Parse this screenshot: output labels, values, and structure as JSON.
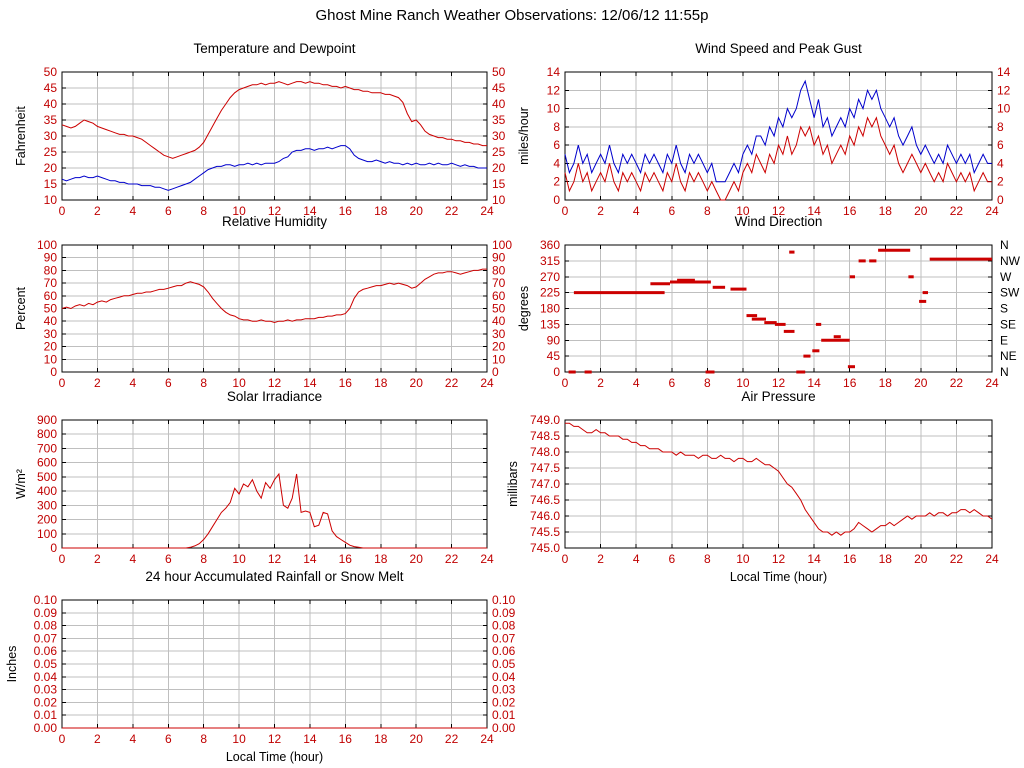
{
  "page_title": "Ghost Mine Ranch Weather Observations: 12/06/12 11:55p",
  "colors": {
    "red": "#cc0000",
    "blue": "#0000cc",
    "grid": "#bfbfbf",
    "tick_text": "#c00000",
    "axis_text": "#000000"
  },
  "chart_data": [
    {
      "id": "temperature",
      "type": "line",
      "title": "Temperature and Dewpoint",
      "ylabel": "Fahrenheit",
      "xlabel": "",
      "xlim": [
        0,
        24
      ],
      "xtick_step": 2,
      "ylim": [
        10,
        50
      ],
      "yticks": [
        10,
        15,
        20,
        25,
        30,
        35,
        40,
        45,
        50
      ],
      "ytick_decimals": 0,
      "mirror_right": true,
      "series": [
        {
          "name": "temperature",
          "color": "#cc0000",
          "x_start": 0,
          "x_step": 0.25,
          "values": [
            33.5,
            33,
            32.5,
            33,
            34,
            35,
            34.5,
            34,
            33,
            32.5,
            32,
            31.5,
            31,
            30.5,
            30.5,
            30,
            30,
            29.5,
            29,
            28,
            27,
            26,
            25,
            24,
            23.5,
            23,
            23.5,
            24,
            24.5,
            25,
            25.5,
            26.5,
            28,
            30.5,
            33,
            35.5,
            38,
            40,
            42,
            43.5,
            44.5,
            45,
            45.5,
            46,
            46,
            46.5,
            46,
            46.5,
            46.5,
            47,
            46.5,
            46,
            46.5,
            47,
            47,
            46.5,
            47,
            46.5,
            46.5,
            46,
            46,
            45.5,
            45.5,
            45,
            45.5,
            45,
            44.5,
            44.5,
            44,
            44,
            43.5,
            43.5,
            43.5,
            43,
            43,
            42.5,
            42,
            40.5,
            37,
            34.5,
            35,
            33.5,
            31.5,
            30.5,
            30,
            29.5,
            29.5,
            29,
            29,
            28.5,
            28.5,
            28,
            28,
            27.5,
            27.5,
            27,
            27
          ]
        },
        {
          "name": "dewpoint",
          "color": "#0000cc",
          "x_start": 0,
          "x_step": 0.25,
          "values": [
            16.5,
            16,
            16.5,
            17,
            17,
            17.5,
            17,
            17,
            17.5,
            17,
            16.5,
            16,
            16,
            15.5,
            15.5,
            15,
            15,
            15,
            14.5,
            14.5,
            14.5,
            14,
            14,
            13.5,
            13,
            13.5,
            14,
            14.5,
            15,
            15.5,
            16.5,
            17.5,
            18.5,
            19.5,
            20,
            20.5,
            20.5,
            21,
            21,
            20.5,
            21,
            21,
            21.5,
            21,
            21.5,
            21,
            21.5,
            21.5,
            21.5,
            22,
            23,
            23.5,
            25,
            25.5,
            25.5,
            26,
            26,
            25.5,
            26,
            26,
            26.5,
            26,
            26.5,
            27,
            27,
            26,
            24,
            23,
            22.5,
            22,
            22,
            22.5,
            22,
            21.5,
            22,
            21.5,
            21.5,
            21,
            21.5,
            21,
            21.5,
            21,
            21,
            21.5,
            21,
            21.5,
            21,
            21,
            21.5,
            21,
            20.5,
            21,
            20.5,
            20.5,
            20,
            20,
            20
          ]
        }
      ]
    },
    {
      "id": "wind_speed",
      "type": "line",
      "title": "Wind Speed and Peak Gust",
      "ylabel": "miles/hour",
      "xlabel": "",
      "xlim": [
        0,
        24
      ],
      "xtick_step": 2,
      "ylim": [
        0,
        14
      ],
      "yticks": [
        0,
        2,
        4,
        6,
        8,
        10,
        12,
        14
      ],
      "ytick_decimals": 0,
      "mirror_right": true,
      "series": [
        {
          "name": "peak-gust",
          "color": "#0000cc",
          "x_start": 0,
          "x_step": 0.25,
          "values": [
            5,
            3,
            4,
            6,
            4,
            5,
            3,
            4,
            5,
            4,
            6,
            4,
            3,
            5,
            4,
            5,
            4,
            3,
            5,
            4,
            5,
            4,
            3,
            5,
            4,
            6,
            4,
            3,
            5,
            4,
            5,
            4,
            3,
            4,
            2,
            2,
            2,
            3,
            4,
            3,
            5,
            6,
            5,
            7,
            7,
            6,
            8,
            7,
            9,
            8,
            10,
            9,
            10,
            12,
            13,
            11,
            9,
            11,
            8,
            9,
            7,
            8,
            9,
            8,
            10,
            9,
            11,
            10,
            12,
            11,
            12,
            10,
            9,
            8,
            9,
            7,
            6,
            7,
            8,
            6,
            5,
            6,
            5,
            4,
            5,
            4,
            6,
            5,
            4,
            5,
            4,
            5,
            3,
            4,
            5,
            4,
            4
          ]
        },
        {
          "name": "wind-speed",
          "color": "#cc0000",
          "x_start": 0,
          "x_step": 0.25,
          "values": [
            3,
            1,
            2,
            4,
            2,
            3,
            1,
            2,
            3,
            2,
            4,
            2,
            1,
            3,
            2,
            3,
            2,
            1,
            3,
            2,
            3,
            2,
            1,
            3,
            2,
            4,
            2,
            1,
            3,
            2,
            3,
            2,
            1,
            2,
            1,
            0,
            0,
            1,
            2,
            1,
            3,
            4,
            3,
            5,
            4,
            3,
            5,
            4,
            6,
            5,
            7,
            5,
            6,
            8,
            7,
            8,
            6,
            7,
            5,
            6,
            4,
            5,
            6,
            5,
            7,
            6,
            8,
            7,
            9,
            8,
            9,
            7,
            6,
            5,
            6,
            4,
            3,
            4,
            5,
            4,
            3,
            4,
            3,
            2,
            3,
            2,
            4,
            3,
            2,
            3,
            2,
            3,
            1,
            2,
            3,
            2,
            2
          ]
        }
      ]
    },
    {
      "id": "humidity",
      "type": "line",
      "title": "Relative Humidity",
      "ylabel": "Percent",
      "xlabel": "",
      "xlim": [
        0,
        24
      ],
      "xtick_step": 2,
      "ylim": [
        0,
        100
      ],
      "yticks": [
        0,
        10,
        20,
        30,
        40,
        50,
        60,
        70,
        80,
        90,
        100
      ],
      "ytick_decimals": 0,
      "mirror_right": true,
      "series": [
        {
          "name": "relative-humidity",
          "color": "#cc0000",
          "x_start": 0,
          "x_step": 0.25,
          "values": [
            50,
            51,
            50,
            52,
            53,
            52,
            54,
            53,
            55,
            56,
            55,
            57,
            58,
            59,
            60,
            60,
            61,
            62,
            62,
            63,
            63,
            64,
            65,
            65,
            66,
            67,
            68,
            68,
            70,
            71,
            70,
            69,
            67,
            63,
            58,
            54,
            50,
            47,
            45,
            44,
            42,
            41,
            41,
            40,
            40,
            41,
            40,
            40,
            39,
            40,
            40,
            41,
            40,
            41,
            41,
            42,
            42,
            42,
            43,
            43,
            44,
            44,
            45,
            45,
            46,
            50,
            58,
            63,
            65,
            66,
            67,
            68,
            68,
            69,
            70,
            69,
            70,
            69,
            68,
            66,
            67,
            70,
            73,
            75,
            77,
            78,
            78,
            79,
            79,
            78,
            77,
            78,
            79,
            80,
            80,
            81,
            81
          ]
        }
      ]
    },
    {
      "id": "wind_direction",
      "type": "segments",
      "title": "Wind Direction",
      "ylabel": "degrees",
      "xlabel": "",
      "xlim": [
        0,
        24
      ],
      "xtick_step": 2,
      "ylim": [
        0,
        360
      ],
      "yticks": [
        0,
        45,
        90,
        135,
        180,
        225,
        270,
        315,
        360
      ],
      "ytick_decimals": 0,
      "mirror_right": false,
      "right_labels": [
        "N",
        "NE",
        "E",
        "SE",
        "S",
        "SW",
        "W",
        "NW",
        "N"
      ],
      "segment_color": "#cc0000",
      "segments": [
        [
          0.2,
          0.6,
          0
        ],
        [
          0.5,
          5.6,
          225
        ],
        [
          1.1,
          1.5,
          0
        ],
        [
          4.8,
          5.9,
          250
        ],
        [
          5.9,
          8.2,
          255
        ],
        [
          6.3,
          7.3,
          260
        ],
        [
          7.9,
          8.4,
          0
        ],
        [
          8.3,
          9.0,
          240
        ],
        [
          9.3,
          10.2,
          235
        ],
        [
          10.2,
          10.8,
          160
        ],
        [
          10.5,
          11.3,
          150
        ],
        [
          11.2,
          11.9,
          140
        ],
        [
          11.8,
          12.4,
          135
        ],
        [
          12.3,
          12.9,
          115
        ],
        [
          12.6,
          12.9,
          340
        ],
        [
          13.0,
          13.5,
          0
        ],
        [
          13.4,
          13.8,
          45
        ],
        [
          13.9,
          14.3,
          60
        ],
        [
          14.1,
          14.4,
          135
        ],
        [
          14.4,
          16.0,
          90
        ],
        [
          15.1,
          15.5,
          100
        ],
        [
          15.9,
          16.3,
          15
        ],
        [
          16.0,
          16.3,
          270
        ],
        [
          16.5,
          16.9,
          315
        ],
        [
          17.1,
          17.5,
          315
        ],
        [
          17.6,
          19.4,
          345
        ],
        [
          19.3,
          19.6,
          270
        ],
        [
          19.9,
          20.3,
          200
        ],
        [
          20.1,
          20.4,
          225
        ],
        [
          20.5,
          24.0,
          320
        ]
      ]
    },
    {
      "id": "solar",
      "type": "line",
      "title": "Solar Irradiance",
      "ylabel": "W/m²",
      "xlabel": "",
      "xlim": [
        0,
        24
      ],
      "xtick_step": 2,
      "ylim": [
        0,
        900
      ],
      "yticks": [
        0,
        100,
        200,
        300,
        400,
        500,
        600,
        700,
        800,
        900
      ],
      "ytick_decimals": 0,
      "mirror_right": false,
      "series": [
        {
          "name": "solar-irradiance",
          "color": "#cc0000",
          "x_start": 0,
          "x_step": 0.25,
          "values": [
            0,
            0,
            0,
            0,
            0,
            0,
            0,
            0,
            0,
            0,
            0,
            0,
            0,
            0,
            0,
            0,
            0,
            0,
            0,
            0,
            0,
            0,
            0,
            0,
            0,
            0,
            0,
            0,
            0,
            5,
            15,
            30,
            60,
            100,
            150,
            200,
            250,
            280,
            320,
            420,
            380,
            450,
            430,
            480,
            400,
            350,
            460,
            420,
            480,
            520,
            300,
            280,
            350,
            520,
            250,
            260,
            250,
            150,
            160,
            250,
            240,
            120,
            80,
            60,
            40,
            20,
            10,
            5,
            0,
            0,
            0,
            0,
            0,
            0,
            0,
            0,
            0,
            0,
            0,
            0,
            0,
            0,
            0,
            0,
            0,
            0,
            0,
            0,
            0,
            0,
            0,
            0,
            0,
            0,
            0,
            0,
            0
          ]
        }
      ]
    },
    {
      "id": "pressure",
      "type": "line",
      "title": "Air Pressure",
      "ylabel": "millibars",
      "xlabel": "Local Time (hour)",
      "xlim": [
        0,
        24
      ],
      "xtick_step": 2,
      "ylim": [
        745.0,
        749.0
      ],
      "yticks": [
        745.0,
        745.5,
        746.0,
        746.5,
        747.0,
        747.5,
        748.0,
        748.5,
        749.0
      ],
      "ytick_decimals": 1,
      "mirror_right": false,
      "series": [
        {
          "name": "air-pressure",
          "color": "#cc0000",
          "x_start": 0,
          "x_step": 0.25,
          "values": [
            748.9,
            748.9,
            748.8,
            748.8,
            748.7,
            748.6,
            748.6,
            748.7,
            748.6,
            748.6,
            748.5,
            748.5,
            748.5,
            748.4,
            748.4,
            748.3,
            748.3,
            748.2,
            748.2,
            748.1,
            748.1,
            748.1,
            748.0,
            748.0,
            748.0,
            747.9,
            748.0,
            747.9,
            747.9,
            747.9,
            747.8,
            747.9,
            747.9,
            747.8,
            747.8,
            747.9,
            747.8,
            747.8,
            747.7,
            747.8,
            747.8,
            747.7,
            747.7,
            747.8,
            747.7,
            747.6,
            747.6,
            747.5,
            747.4,
            747.2,
            747.0,
            746.9,
            746.7,
            746.5,
            746.2,
            746.0,
            745.8,
            745.6,
            745.5,
            745.5,
            745.4,
            745.5,
            745.4,
            745.5,
            745.5,
            745.6,
            745.8,
            745.7,
            745.6,
            745.5,
            745.6,
            745.7,
            745.7,
            745.8,
            745.7,
            745.8,
            745.9,
            746.0,
            745.9,
            746.0,
            746.0,
            746.0,
            746.1,
            746.0,
            746.1,
            746.1,
            746.0,
            746.1,
            746.1,
            746.2,
            746.2,
            746.1,
            746.2,
            746.1,
            746.0,
            746.0,
            745.9
          ]
        }
      ]
    },
    {
      "id": "rainfall",
      "type": "line",
      "title": "24 hour Accumulated Rainfall or Snow Melt",
      "ylabel": "Inches",
      "xlabel": "Local Time (hour)",
      "xlim": [
        0,
        24
      ],
      "xtick_step": 2,
      "ylim": [
        0,
        0.1
      ],
      "yticks": [
        0,
        0.01,
        0.02,
        0.03,
        0.04,
        0.05,
        0.06,
        0.07,
        0.08,
        0.09,
        0.1
      ],
      "ytick_decimals": 2,
      "mirror_right": true,
      "series": [
        {
          "name": "rainfall",
          "color": "#cc0000",
          "x_start": 0,
          "x_step": 24,
          "values": [
            0,
            0
          ]
        }
      ]
    }
  ]
}
